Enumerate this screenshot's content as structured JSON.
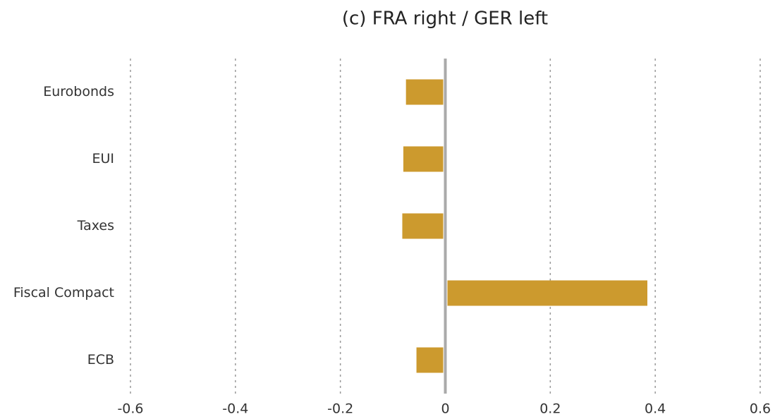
{
  "chart_data": {
    "type": "barh",
    "title": "(c) FRA right / GER left",
    "categories": [
      "Eurobonds",
      "EUI",
      "Taxes",
      "Fiscal Compact",
      "ECB"
    ],
    "values": [
      -0.075,
      -0.08,
      -0.082,
      0.385,
      -0.055
    ],
    "color": "#cc9a2e",
    "xlim": [
      -0.6,
      0.6
    ],
    "xticks": [
      -0.6,
      -0.4,
      -0.2,
      0,
      0.2,
      0.4,
      0.6
    ],
    "grid": true
  }
}
